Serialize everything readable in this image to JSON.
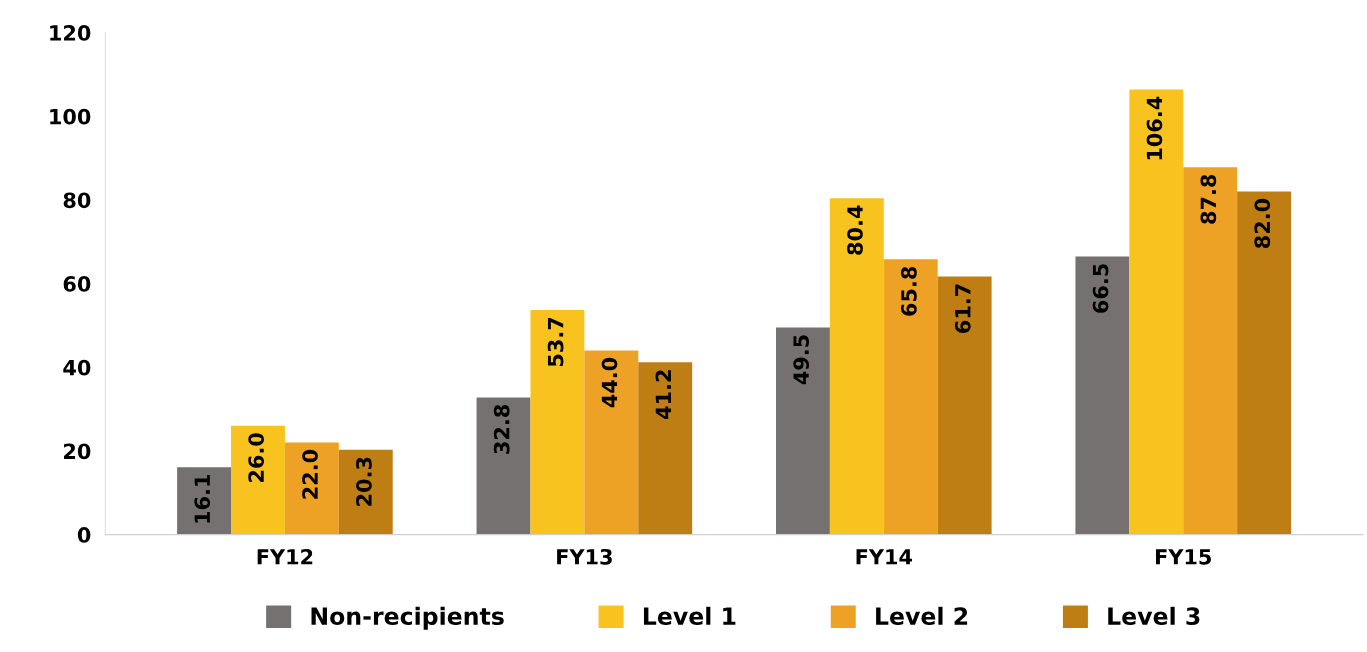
{
  "chart_data": {
    "type": "bar",
    "categories": [
      "FY12",
      "FY13",
      "FY14",
      "FY15"
    ],
    "series": [
      {
        "name": "Non-recipients",
        "color": "#767171",
        "values": [
          16.1,
          32.8,
          49.5,
          66.5
        ],
        "value_labels": [
          "16.1",
          "32.8",
          "49.5",
          "66.5"
        ]
      },
      {
        "name": "Level 1",
        "color": "#f9c31f",
        "values": [
          26.0,
          53.7,
          80.4,
          106.4
        ],
        "value_labels": [
          "26.0",
          "53.7",
          "80.4",
          "106.4"
        ]
      },
      {
        "name": "Level 2",
        "color": "#eda225",
        "values": [
          22.0,
          44.0,
          65.8,
          87.8
        ],
        "value_labels": [
          "22.0",
          "44.0",
          "65.8",
          "87.8"
        ]
      },
      {
        "name": "Level 3",
        "color": "#bf7e14",
        "values": [
          20.3,
          41.2,
          61.7,
          82.0
        ],
        "value_labels": [
          "20.3",
          "41.2",
          "61.7",
          "82.0"
        ]
      }
    ],
    "ylim": [
      0,
      120
    ],
    "yticks": [
      0,
      20,
      40,
      60,
      80,
      100,
      120
    ],
    "grid": false,
    "legend": "bottom"
  }
}
